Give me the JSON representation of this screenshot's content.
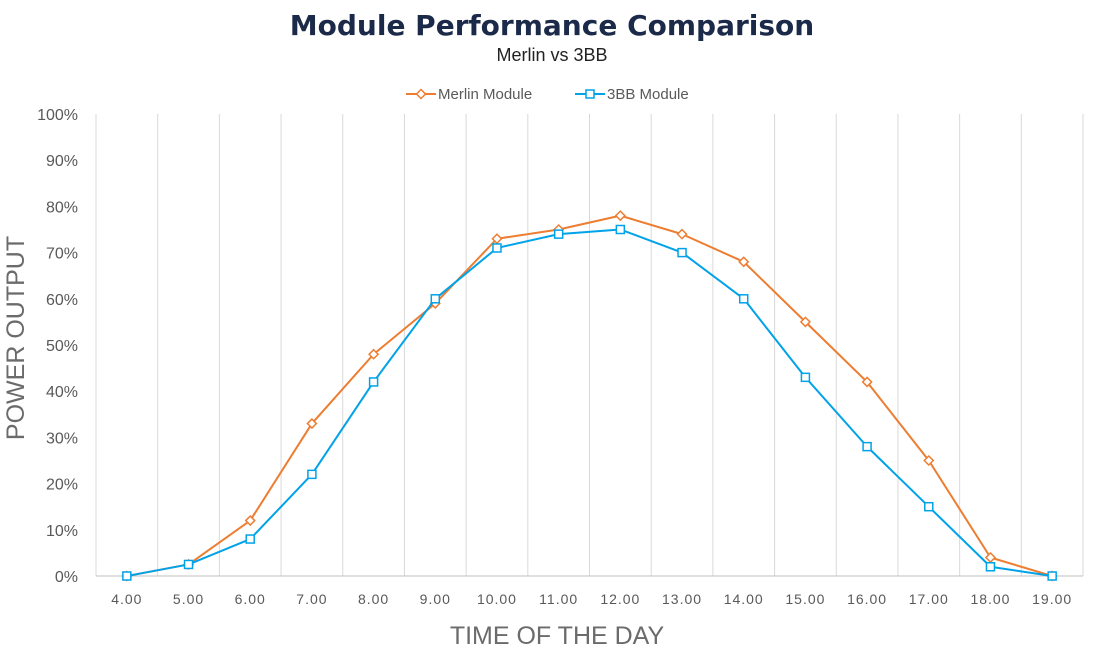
{
  "chart_data": {
    "type": "line",
    "title": "Module Performance Comparison",
    "subtitle": "Merlin vs 3BB",
    "xlabel": "TIME OF THE DAY",
    "ylabel": "POWER OUTPUT",
    "categories": [
      "4.00",
      "5.00",
      "6.00",
      "7.00",
      "8.00",
      "9.00",
      "10.00",
      "11.00",
      "12.00",
      "13.00",
      "14.00",
      "15.00",
      "16.00",
      "17.00",
      "18.00",
      "19.00"
    ],
    "y_ticks": [
      "0%",
      "10%",
      "20%",
      "30%",
      "40%",
      "50%",
      "60%",
      "70%",
      "80%",
      "90%",
      "100%"
    ],
    "ylim": [
      0,
      100
    ],
    "grid": "vertical",
    "legend_position": "top",
    "series": [
      {
        "name": "Merlin Module",
        "color": "#ED7D31",
        "marker": "diamond",
        "values": [
          0,
          2.5,
          12,
          33,
          48,
          59,
          73,
          75,
          78,
          74,
          68,
          55,
          42,
          25,
          4,
          0
        ]
      },
      {
        "name": "3BB Module",
        "color": "#00A3E8",
        "marker": "square",
        "values": [
          0,
          2.5,
          8,
          22,
          42,
          60,
          71,
          74,
          75,
          70,
          60,
          43,
          28,
          15,
          2,
          0
        ]
      }
    ]
  }
}
